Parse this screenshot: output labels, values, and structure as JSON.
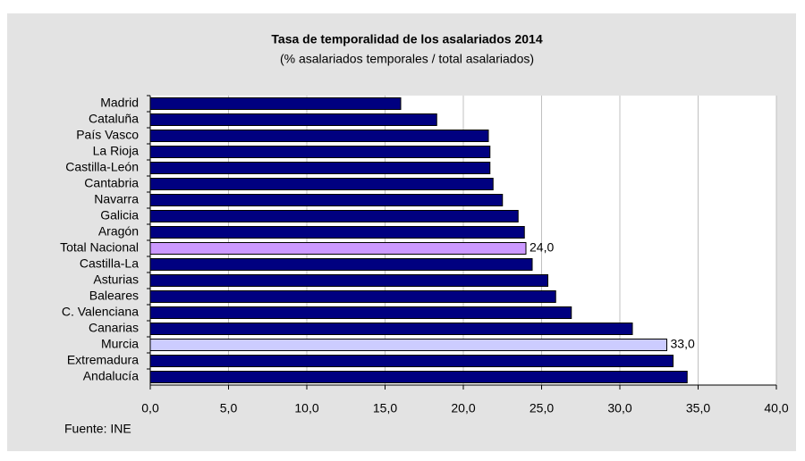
{
  "chart_data": {
    "type": "bar",
    "orientation": "horizontal",
    "title": "Tasa de temporalidad de los asalariados  2014",
    "subtitle": "(% asalariados temporales / total asalariados)",
    "source": "Fuente: INE",
    "categories": [
      "Madrid",
      "Cataluña",
      "País Vasco",
      "La Rioja",
      "Castilla-León",
      "Cantabria",
      "Navarra",
      "Galicia",
      "Aragón",
      "Total Nacional",
      "Castilla-La",
      "Asturias",
      "Baleares",
      "C. Valenciana",
      "Canarias",
      "Murcia",
      "Extremadura",
      "Andalucía"
    ],
    "values": [
      16.0,
      18.3,
      21.6,
      21.7,
      21.7,
      21.9,
      22.5,
      23.5,
      23.9,
      24.0,
      24.4,
      25.4,
      25.9,
      26.9,
      30.8,
      33.0,
      33.4,
      34.3
    ],
    "value_labels": [
      null,
      null,
      null,
      null,
      null,
      null,
      null,
      null,
      null,
      "24,0",
      null,
      null,
      null,
      null,
      null,
      "33,0",
      null,
      null
    ],
    "colors": [
      "#000080",
      "#000080",
      "#000080",
      "#000080",
      "#000080",
      "#000080",
      "#000080",
      "#000080",
      "#000080",
      "#cc99ff",
      "#000080",
      "#000080",
      "#000080",
      "#000080",
      "#000080",
      "#ccccff",
      "#000080",
      "#000080"
    ],
    "xlim": [
      0,
      40
    ],
    "xticks": [
      {
        "value": 0,
        "label": "0,0"
      },
      {
        "value": 5,
        "label": "5,0"
      },
      {
        "value": 10,
        "label": "10,0"
      },
      {
        "value": 15,
        "label": "15,0"
      },
      {
        "value": 20,
        "label": "20,0"
      },
      {
        "value": 25,
        "label": "25,0"
      },
      {
        "value": 30,
        "label": "30,0"
      },
      {
        "value": 35,
        "label": "35,0"
      },
      {
        "value": 40,
        "label": "40,0"
      }
    ],
    "grid": true
  }
}
